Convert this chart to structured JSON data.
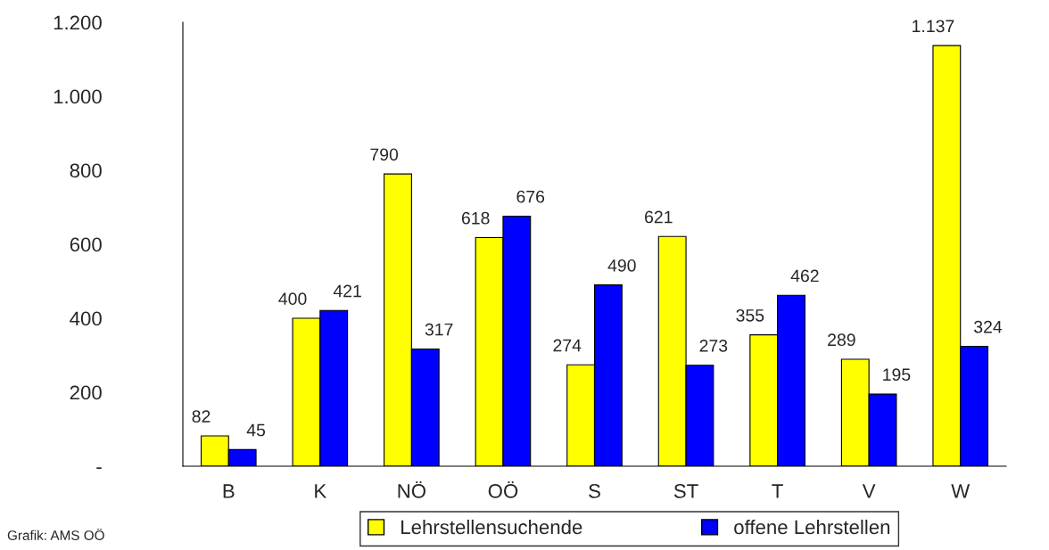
{
  "chart_data": {
    "type": "bar",
    "categories": [
      "B",
      "K",
      "NÖ",
      "OÖ",
      "S",
      "ST",
      "T",
      "V",
      "W"
    ],
    "series": [
      {
        "name": "Lehrstellensuchende",
        "color": "#ffff00",
        "values": [
          82,
          400,
          790,
          618,
          274,
          621,
          355,
          289,
          1137
        ],
        "value_labels": [
          "82",
          "400",
          "790",
          "618",
          "274",
          "621",
          "355",
          "289",
          "1.137"
        ]
      },
      {
        "name": "offene Lehrstellen",
        "color": "#0000ff",
        "values": [
          45,
          421,
          317,
          676,
          490,
          273,
          462,
          195,
          324
        ],
        "value_labels": [
          "45",
          "421",
          "317",
          "676",
          "490",
          "273",
          "462",
          "195",
          "324"
        ]
      }
    ],
    "ylim": [
      0,
      1200
    ],
    "yticks": [
      {
        "value": 0,
        "label": "-"
      },
      200,
      400,
      600,
      800,
      {
        "value": 1000,
        "label": "1.000"
      },
      {
        "value": 1200,
        "label": "1.200"
      }
    ],
    "grid": false,
    "legend": "bottom",
    "annotations": [
      "Grafik: AMS OÖ"
    ]
  }
}
